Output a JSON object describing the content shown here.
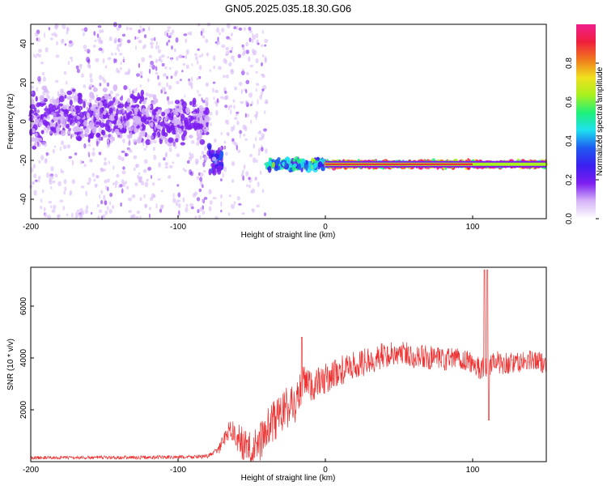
{
  "page_title": "GN05.2025.035.18.30.G06",
  "chart_data": [
    {
      "type": "heatmap",
      "xlabel": "Height of straight line (km)",
      "ylabel": "Frequency (Hz)",
      "xlim": [
        -200,
        150
      ],
      "ylim": [
        -50,
        50
      ],
      "x_ticks": [
        -200,
        -100,
        0,
        100
      ],
      "x_tick_labels": [
        "-200",
        "-100",
        "0",
        "100"
      ],
      "y_ticks": [
        -40,
        -20,
        0,
        20,
        40
      ],
      "y_tick_labels": [
        "-40",
        "-20",
        "0",
        "20",
        "40"
      ],
      "colorbar": {
        "label": "Normalized spectral amplitude",
        "range": [
          0,
          1
        ],
        "ticks": [
          0,
          0.2,
          0.4,
          0.6,
          0.8
        ],
        "tick_labels": [
          "0.0",
          "0.2",
          "0.4",
          "0.6",
          "0.8"
        ],
        "colors": [
          "#ffffff",
          "#d6b4f8",
          "#7d1ef0",
          "#3a1ef0",
          "#1e5af0",
          "#1ee0f0",
          "#1ef07a",
          "#a8f01e",
          "#f0e01e",
          "#f07a1e",
          "#f01e3c",
          "#f01e8c"
        ]
      },
      "regions": [
        {
          "x": [
            -200,
            -120
          ],
          "y_center": 2,
          "spread": 10,
          "amplitude": 0.15
        },
        {
          "x": [
            -120,
            -80
          ],
          "y_center": 0,
          "spread": 8,
          "amplitude": 0.15
        },
        {
          "x": [
            -80,
            -70
          ],
          "y_center": -20,
          "spread": 6,
          "amplitude": 0.25
        },
        {
          "x": [
            -40,
            0
          ],
          "y_center": -22,
          "spread": 2,
          "amplitude": 0.45
        },
        {
          "x": [
            0,
            150
          ],
          "y_center": -22,
          "spread": 1,
          "amplitude": 0.9
        }
      ],
      "grid": false
    },
    {
      "type": "line",
      "xlabel": "Height of straight line (km)",
      "ylabel": "SNR (10 * v/v)",
      "xlim": [
        -200,
        150
      ],
      "ylim": [
        0,
        7500
      ],
      "x_ticks": [
        -200,
        -100,
        0,
        100
      ],
      "x_tick_labels": [
        "-200",
        "-100",
        "0",
        "100"
      ],
      "y_ticks": [
        2000,
        4000,
        6000
      ],
      "y_tick_labels": [
        "2000",
        "4000",
        "6000"
      ],
      "series": [
        {
          "color": "#ee3333",
          "points": [
            [
              -200,
              150
            ],
            [
              -100,
              170
            ],
            [
              -80,
              200
            ],
            [
              -72,
              500
            ],
            [
              -65,
              1300
            ],
            [
              -60,
              900
            ],
            [
              -50,
              400
            ],
            [
              -45,
              700
            ],
            [
              -40,
              1200
            ],
            [
              -30,
              1900
            ],
            [
              -20,
              2300
            ],
            [
              -15,
              3000
            ],
            [
              -10,
              2900
            ],
            [
              -5,
              3000
            ],
            [
              0,
              3200
            ],
            [
              10,
              3500
            ],
            [
              20,
              3700
            ],
            [
              30,
              3900
            ],
            [
              40,
              4100
            ],
            [
              50,
              4200
            ],
            [
              60,
              4100
            ],
            [
              70,
              4000
            ],
            [
              80,
              3900
            ],
            [
              90,
              4000
            ],
            [
              100,
              3800
            ],
            [
              105,
              3600
            ],
            [
              110,
              3700
            ],
            [
              115,
              3900
            ],
            [
              120,
              3800
            ],
            [
              130,
              3800
            ],
            [
              140,
              3900
            ],
            [
              150,
              3800
            ]
          ],
          "spikes": [
            [
              -16,
              4800
            ],
            [
              108,
              7400
            ],
            [
              110,
              7400
            ],
            [
              111,
              1600
            ]
          ],
          "noise": [
            [
              -200,
              60
            ],
            [
              -75,
              80
            ],
            [
              -60,
              600
            ],
            [
              -30,
              900
            ],
            [
              0,
              600
            ],
            [
              50,
              500
            ],
            [
              150,
              400
            ]
          ]
        }
      ],
      "grid": false
    }
  ]
}
